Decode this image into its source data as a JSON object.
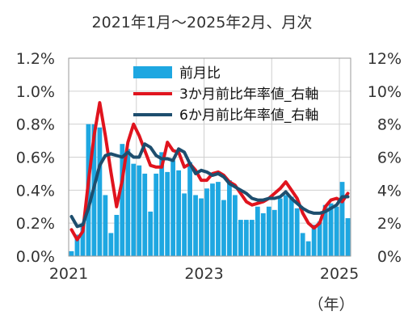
{
  "chart_data": {
    "type": "bar",
    "subtitle": "2021年1月～2025年2月、月次",
    "x_unit_label": "（年）",
    "x_tick_labels": [
      "2021",
      "2023",
      "2025"
    ],
    "left_axis": {
      "ylim": [
        0,
        1.2
      ],
      "ticks": [
        "0.0%",
        "0.2%",
        "0.4%",
        "0.6%",
        "0.8%",
        "1.0%",
        "1.2%"
      ]
    },
    "right_axis": {
      "ylim": [
        0,
        12
      ],
      "ticks": [
        "0%",
        "2%",
        "4%",
        "6%",
        "8%",
        "10%",
        "12%"
      ]
    },
    "grid": true,
    "legend_position": "top-center",
    "x": [
      "2021-01",
      "2021-02",
      "2021-03",
      "2021-04",
      "2021-05",
      "2021-06",
      "2021-07",
      "2021-08",
      "2021-09",
      "2021-10",
      "2021-11",
      "2021-12",
      "2022-01",
      "2022-02",
      "2022-03",
      "2022-04",
      "2022-05",
      "2022-06",
      "2022-07",
      "2022-08",
      "2022-09",
      "2022-10",
      "2022-11",
      "2022-12",
      "2023-01",
      "2023-02",
      "2023-03",
      "2023-04",
      "2023-05",
      "2023-06",
      "2023-07",
      "2023-08",
      "2023-09",
      "2023-10",
      "2023-11",
      "2023-12",
      "2024-01",
      "2024-02",
      "2024-03",
      "2024-04",
      "2024-05",
      "2024-06",
      "2024-07",
      "2024-08",
      "2024-09",
      "2024-10",
      "2024-11",
      "2024-12",
      "2025-01",
      "2025-02"
    ],
    "series": [
      {
        "name": "前月比",
        "kind": "bar",
        "axis": "left",
        "color": "#1ea7e1",
        "values": [
          0.03,
          0.13,
          0.2,
          0.8,
          0.8,
          0.78,
          0.37,
          0.14,
          0.25,
          0.68,
          0.65,
          0.56,
          0.55,
          0.5,
          0.27,
          0.5,
          0.63,
          0.51,
          0.58,
          0.52,
          0.38,
          0.57,
          0.37,
          0.35,
          0.41,
          0.44,
          0.45,
          0.34,
          0.46,
          0.37,
          0.22,
          0.22,
          0.22,
          0.3,
          0.26,
          0.3,
          0.28,
          0.35,
          0.37,
          0.36,
          0.29,
          0.14,
          0.09,
          0.19,
          0.21,
          0.31,
          0.32,
          0.3,
          0.45,
          0.23
        ]
      },
      {
        "name": "3か月前比年率値_右軸",
        "kind": "line",
        "axis": "right",
        "color": "#e0141e",
        "values": [
          1.6,
          1.0,
          1.5,
          4.5,
          7.3,
          9.3,
          7.3,
          5.1,
          3.0,
          4.6,
          6.9,
          8.0,
          7.3,
          6.4,
          5.5,
          5.4,
          5.4,
          6.9,
          6.4,
          6.3,
          5.4,
          5.6,
          5.2,
          4.6,
          4.6,
          5.0,
          5.1,
          4.9,
          4.5,
          4.3,
          3.8,
          3.3,
          3.1,
          3.2,
          3.3,
          3.5,
          3.8,
          4.1,
          4.5,
          4.0,
          3.5,
          2.6,
          2.0,
          1.7,
          2.0,
          3.0,
          3.4,
          3.5,
          3.3,
          3.8
        ]
      },
      {
        "name": "6か月前比年率値_右軸",
        "kind": "line",
        "axis": "right",
        "color": "#1d4e6e",
        "values": [
          2.4,
          1.8,
          1.9,
          2.9,
          4.2,
          5.5,
          6.1,
          6.2,
          6.1,
          6.0,
          6.3,
          6.0,
          6.0,
          6.8,
          6.6,
          6.1,
          5.9,
          5.9,
          5.8,
          6.5,
          6.3,
          5.6,
          5.0,
          5.2,
          5.1,
          4.9,
          5.0,
          4.8,
          4.4,
          4.2,
          4.0,
          3.8,
          3.5,
          3.4,
          3.4,
          3.5,
          3.5,
          3.6,
          3.9,
          3.5,
          3.2,
          2.9,
          2.7,
          2.6,
          2.6,
          2.7,
          2.9,
          3.1,
          3.6,
          3.6
        ]
      }
    ]
  }
}
